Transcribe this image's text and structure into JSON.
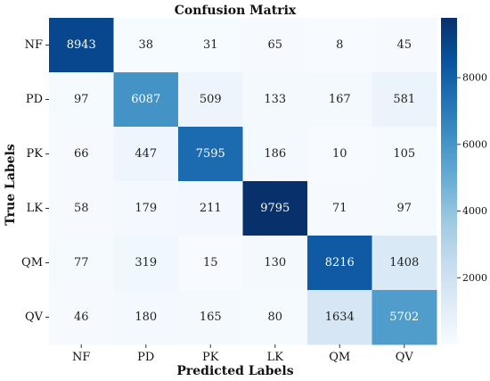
{
  "chart_data": {
    "type": "heatmap",
    "title": "Confusion Matrix",
    "xlabel": "Predicted Labels",
    "ylabel": "True Labels",
    "x_categories": [
      "NF",
      "PD",
      "PK",
      "LK",
      "QM",
      "QV"
    ],
    "y_categories": [
      "NF",
      "PD",
      "PK",
      "LK",
      "QM",
      "QV"
    ],
    "matrix": [
      [
        8943,
        38,
        31,
        65,
        8,
        45
      ],
      [
        97,
        6087,
        509,
        133,
        167,
        581
      ],
      [
        66,
        447,
        7595,
        186,
        10,
        105
      ],
      [
        58,
        179,
        211,
        9795,
        71,
        97
      ],
      [
        77,
        319,
        15,
        130,
        8216,
        1408
      ],
      [
        46,
        180,
        165,
        80,
        1634,
        5702
      ]
    ],
    "colorbar": {
      "colormap": "Blues",
      "range": [
        0,
        9795
      ],
      "ticks": [
        2000,
        4000,
        6000,
        8000
      ]
    }
  }
}
